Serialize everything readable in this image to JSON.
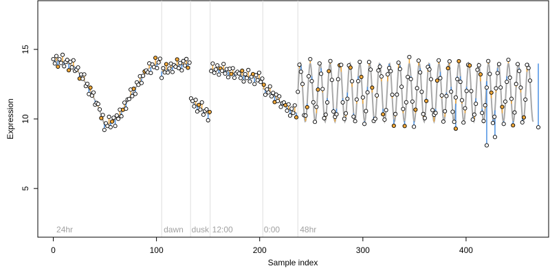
{
  "chart_data": {
    "type": "scatter",
    "title": "",
    "xlabel": "Sample index",
    "ylabel": "Expression",
    "xlim": [
      -15,
      480
    ],
    "ylim": [
      1.5,
      18.5
    ],
    "xticks": [
      0,
      100,
      200,
      300,
      400
    ],
    "yticks": [
      5,
      10,
      15
    ],
    "grid": false,
    "legend": "none",
    "colors": {
      "fit_line": "#a8a8a8",
      "residual_positive": "#f2a93b",
      "residual_negative": "#4a90e2",
      "point_edge": "#000000",
      "point_fill_default": "#ffffff",
      "divider": "#dddddd",
      "phase_label": "#a0a0a0"
    },
    "phase_dividers": [
      105,
      133,
      152,
      203,
      237
    ],
    "phase_labels": [
      {
        "text": "24hr",
        "x": 3
      },
      {
        "text": "dawn",
        "x": 107
      },
      {
        "text": "dusk",
        "x": 134
      },
      {
        "text": "12:00",
        "x": 154
      },
      {
        "text": "0:00",
        "x": 204
      },
      {
        "text": "48hr",
        "x": 239
      }
    ],
    "segments": [
      {
        "x_start": 0,
        "x_end": 104,
        "kind": "knots",
        "knots": [
          [
            0,
            14.2
          ],
          [
            10,
            14.1
          ],
          [
            20,
            13.8
          ],
          [
            28,
            13.0
          ],
          [
            36,
            12.0
          ],
          [
            44,
            10.8
          ],
          [
            50,
            9.5
          ],
          [
            58,
            9.8
          ],
          [
            65,
            10.3
          ],
          [
            72,
            11.3
          ],
          [
            82,
            12.5
          ],
          [
            92,
            13.6
          ],
          [
            104,
            14.1
          ]
        ]
      },
      {
        "x_start": 105,
        "x_end": 132,
        "kind": "knots",
        "knots": [
          [
            105,
            13.4
          ],
          [
            118,
            13.8
          ],
          [
            132,
            14.0
          ]
        ]
      },
      {
        "x_start": 133,
        "x_end": 151,
        "kind": "knots",
        "knots": [
          [
            133,
            11.3
          ],
          [
            142,
            10.8
          ],
          [
            151,
            10.3
          ]
        ]
      },
      {
        "x_start": 152,
        "x_end": 202,
        "kind": "knots",
        "knots": [
          [
            152,
            13.6
          ],
          [
            165,
            13.5
          ],
          [
            178,
            13.2
          ],
          [
            190,
            13.0
          ],
          [
            202,
            12.9
          ]
        ]
      },
      {
        "x_start": 203,
        "x_end": 236,
        "kind": "knots",
        "knots": [
          [
            203,
            12.2
          ],
          [
            212,
            11.8
          ],
          [
            220,
            11.2
          ],
          [
            228,
            10.7
          ],
          [
            236,
            10.4
          ]
        ]
      },
      {
        "x_start": 237,
        "x_end": 465,
        "kind": "wave",
        "mean": 11.9,
        "amplitude": 2.1,
        "period": 9.6
      }
    ],
    "points": {
      "count": 309,
      "step": 1.5,
      "x_start": 0,
      "x_end": 463,
      "residual_offsets": [
        0.1,
        -0.2,
        0.35,
        -0.4,
        0.15,
        -0.1,
        0.5,
        -0.3,
        0.05,
        0.25,
        -0.45,
        0.2,
        -0.15,
        0.4,
        -0.25,
        0.0,
        0.3,
        -0.35,
        0.1,
        -0.05,
        0.45,
        -0.2,
        0.15,
        -0.4,
        0.25,
        -0.1,
        0.35,
        -0.3,
        0.05,
        0.2
      ],
      "outliers": [
        [
          420,
          8.1
        ],
        [
          428,
          8.7
        ],
        [
          390,
          9.3
        ],
        [
          470,
          9.4
        ]
      ]
    }
  }
}
